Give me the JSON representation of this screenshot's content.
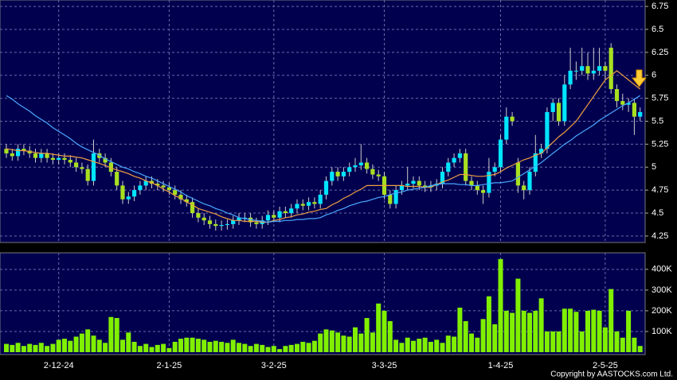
{
  "chart_data": [
    {
      "type": "candlestick",
      "categories": [
        null,
        null,
        null,
        null,
        null,
        null,
        null,
        null,
        null,
        "2-12-24",
        null,
        null,
        null,
        null,
        null,
        null,
        null,
        null,
        null,
        null,
        null,
        null,
        null,
        null,
        null,
        null,
        null,
        null,
        "2-1-25",
        null,
        null,
        null,
        null,
        null,
        null,
        null,
        null,
        null,
        null,
        null,
        null,
        null,
        null,
        null,
        null,
        null,
        "3-2-25",
        null,
        null,
        null,
        null,
        null,
        null,
        null,
        null,
        null,
        null,
        null,
        null,
        null,
        null,
        null,
        null,
        null,
        null,
        "3-3-25",
        null,
        null,
        null,
        null,
        null,
        null,
        null,
        null,
        null,
        null,
        null,
        null,
        null,
        null,
        null,
        null,
        null,
        null,
        null,
        "1-4-25",
        null,
        null,
        null,
        null,
        null,
        null,
        null,
        null,
        null,
        null,
        null,
        null,
        null,
        null,
        null,
        null,
        null,
        "2-5-25",
        null,
        null,
        null,
        null,
        null,
        null
      ],
      "open": [
        5.2,
        5.15,
        5.12,
        5.2,
        5.18,
        5.15,
        5.1,
        5.15,
        5.1,
        5.08,
        5.1,
        5.08,
        5.05,
        5.0,
        4.98,
        4.85,
        5.15,
        5.1,
        5.05,
        4.95,
        4.8,
        4.65,
        4.68,
        4.75,
        4.8,
        4.85,
        4.82,
        4.8,
        4.78,
        4.75,
        4.7,
        4.65,
        4.62,
        4.5,
        4.45,
        4.42,
        4.38,
        4.36,
        4.37,
        4.38,
        4.42,
        4.45,
        4.45,
        4.4,
        4.38,
        4.42,
        4.48,
        4.45,
        4.52,
        4.5,
        4.55,
        4.6,
        4.58,
        4.62,
        4.6,
        4.7,
        4.85,
        4.95,
        4.9,
        4.95,
        5.0,
        5.02,
        5.05,
        4.98,
        4.92,
        4.9,
        4.7,
        4.6,
        4.75,
        4.8,
        4.82,
        4.85,
        4.8,
        4.78,
        4.8,
        4.82,
        4.95,
        5.05,
        5.1,
        5.15,
        4.85,
        4.8,
        4.75,
        4.72,
        4.95,
        5.0,
        5.3,
        5.55,
        5.05,
        4.8,
        4.75,
        4.95,
        5.15,
        5.2,
        5.6,
        5.7,
        5.5,
        5.9,
        6.05,
        6.05,
        6.1,
        6.02,
        6.05,
        6.1,
        6.3,
        5.85,
        5.72,
        5.68,
        5.7,
        5.55
      ],
      "high": [
        5.25,
        5.2,
        5.25,
        5.25,
        5.23,
        5.2,
        5.2,
        5.2,
        5.15,
        5.15,
        5.15,
        5.13,
        5.1,
        5.05,
        5.03,
        5.3,
        5.2,
        5.15,
        5.1,
        5.0,
        4.85,
        4.73,
        4.8,
        4.85,
        4.9,
        4.9,
        4.87,
        4.85,
        4.83,
        4.8,
        4.75,
        4.7,
        4.67,
        4.55,
        4.5,
        4.47,
        4.43,
        4.42,
        4.43,
        4.47,
        4.5,
        4.5,
        4.5,
        4.45,
        4.47,
        4.53,
        4.53,
        4.57,
        4.57,
        4.6,
        4.65,
        4.65,
        4.67,
        4.67,
        4.75,
        4.9,
        5.0,
        5.0,
        5.0,
        5.05,
        5.1,
        5.25,
        5.1,
        5.03,
        4.97,
        4.95,
        4.75,
        4.8,
        4.85,
        5.0,
        4.9,
        4.9,
        4.85,
        4.85,
        4.87,
        5.0,
        5.1,
        5.15,
        5.2,
        5.2,
        4.9,
        4.85,
        4.8,
        5.1,
        5.05,
        5.35,
        5.65,
        5.6,
        5.1,
        4.85,
        5.0,
        5.35,
        5.25,
        5.65,
        5.75,
        5.75,
        6.0,
        6.3,
        6.15,
        6.3,
        6.25,
        6.3,
        6.3,
        6.15,
        6.35,
        5.9,
        5.8,
        5.75,
        5.75,
        5.65
      ],
      "low": [
        5.1,
        5.07,
        5.07,
        5.13,
        5.1,
        5.05,
        5.05,
        5.05,
        5.03,
        5.03,
        5.03,
        5.0,
        4.95,
        4.93,
        4.8,
        4.8,
        5.05,
        5.0,
        4.9,
        4.75,
        4.6,
        4.6,
        4.63,
        4.7,
        4.75,
        4.77,
        4.75,
        4.73,
        4.7,
        4.65,
        4.6,
        4.57,
        4.45,
        4.4,
        4.37,
        4.33,
        4.31,
        4.31,
        4.32,
        4.33,
        4.37,
        4.4,
        4.35,
        4.33,
        4.33,
        4.37,
        4.4,
        4.4,
        4.45,
        4.45,
        4.5,
        4.53,
        4.53,
        4.55,
        4.55,
        4.65,
        4.8,
        4.85,
        4.85,
        4.9,
        4.95,
        4.97,
        4.93,
        4.87,
        4.85,
        4.65,
        4.55,
        4.55,
        4.7,
        4.75,
        4.77,
        4.75,
        4.73,
        4.73,
        4.75,
        4.77,
        4.9,
        5.0,
        5.05,
        4.8,
        4.75,
        4.7,
        4.6,
        4.67,
        4.9,
        4.95,
        5.25,
        5.45,
        4.72,
        4.65,
        4.7,
        4.9,
        5.1,
        5.15,
        5.5,
        5.45,
        5.45,
        5.85,
        5.95,
        6.0,
        5.95,
        5.95,
        6.0,
        5.95,
        5.8,
        5.65,
        5.62,
        5.6,
        5.35,
        5.5
      ],
      "close": [
        5.15,
        5.12,
        5.2,
        5.18,
        5.15,
        5.1,
        5.15,
        5.1,
        5.08,
        5.1,
        5.08,
        5.05,
        5.0,
        4.98,
        4.85,
        5.15,
        5.1,
        5.05,
        4.95,
        4.8,
        4.65,
        4.68,
        4.75,
        4.8,
        4.85,
        4.82,
        4.8,
        4.78,
        4.75,
        4.7,
        4.65,
        4.62,
        4.5,
        4.45,
        4.42,
        4.38,
        4.36,
        4.37,
        4.38,
        4.42,
        4.45,
        4.45,
        4.4,
        4.38,
        4.42,
        4.48,
        4.45,
        4.52,
        4.5,
        4.55,
        4.6,
        4.58,
        4.62,
        4.6,
        4.7,
        4.85,
        4.95,
        4.9,
        4.95,
        5.0,
        5.02,
        5.05,
        4.98,
        4.92,
        4.9,
        4.7,
        4.6,
        4.75,
        4.8,
        4.82,
        4.85,
        4.8,
        4.78,
        4.8,
        4.82,
        4.95,
        5.05,
        5.1,
        5.15,
        4.85,
        4.8,
        4.75,
        4.72,
        4.95,
        5.0,
        5.3,
        5.55,
        5.5,
        4.8,
        4.75,
        4.95,
        5.15,
        5.2,
        5.6,
        5.7,
        5.5,
        5.9,
        6.05,
        6.05,
        6.1,
        6.02,
        6.05,
        6.1,
        6.05,
        5.85,
        5.72,
        5.68,
        5.7,
        5.55,
        5.6
      ],
      "up_color": "#00e5ff",
      "down_color": "#a8e020",
      "series": [
        {
          "color": "#f0a040",
          "values": [
            5.2,
            5.19,
            5.18,
            5.18,
            5.17,
            5.16,
            5.15,
            5.15,
            5.14,
            5.13,
            5.12,
            5.12,
            5.11,
            5.1,
            5.08,
            5.06,
            5.04,
            5.02,
            4.99,
            4.97,
            4.95,
            4.93,
            4.9,
            4.88,
            4.85,
            4.83,
            4.8,
            4.76,
            4.73,
            4.69,
            4.66,
            4.62,
            4.59,
            4.55,
            4.53,
            4.51,
            4.49,
            4.46,
            4.44,
            4.42,
            4.42,
            4.41,
            4.41,
            4.41,
            4.4,
            4.4,
            4.42,
            4.43,
            4.45,
            4.46,
            4.48,
            4.49,
            4.51,
            4.52,
            4.54,
            4.55,
            4.59,
            4.62,
            4.66,
            4.69,
            4.73,
            4.76,
            4.8,
            4.8,
            4.8,
            4.8,
            4.8,
            4.8,
            4.8,
            4.79,
            4.79,
            4.79,
            4.78,
            4.78,
            4.81,
            4.84,
            4.86,
            4.89,
            4.92,
            4.92,
            4.91,
            4.9,
            4.9,
            4.91,
            4.92,
            4.95,
            4.99,
            5.02,
            5.05,
            5.08,
            5.1,
            5.13,
            5.15,
            5.21,
            5.27,
            5.33,
            5.38,
            5.44,
            5.5,
            5.59,
            5.68,
            5.77,
            5.86,
            5.95,
            6.0,
            6.05,
            6.0,
            5.95,
            5.9,
            5.85
          ]
        },
        {
          "color": "#4aa8ff",
          "values": [
            5.78,
            5.74,
            5.69,
            5.65,
            5.61,
            5.56,
            5.52,
            5.48,
            5.43,
            5.39,
            5.35,
            5.31,
            5.26,
            5.22,
            5.19,
            5.16,
            5.13,
            5.09,
            5.06,
            5.03,
            5.0,
            4.98,
            4.95,
            4.93,
            4.9,
            4.88,
            4.85,
            4.82,
            4.79,
            4.76,
            4.73,
            4.69,
            4.66,
            4.63,
            4.6,
            4.58,
            4.55,
            4.53,
            4.5,
            4.48,
            4.45,
            4.44,
            4.43,
            4.42,
            4.41,
            4.4,
            4.41,
            4.41,
            4.42,
            4.42,
            4.43,
            4.43,
            4.44,
            4.44,
            4.45,
            4.48,
            4.5,
            4.53,
            4.55,
            4.58,
            4.6,
            4.62,
            4.63,
            4.65,
            4.67,
            4.68,
            4.7,
            4.72,
            4.73,
            4.75,
            4.76,
            4.77,
            4.78,
            4.8,
            4.81,
            4.82,
            4.82,
            4.82,
            4.81,
            4.81,
            4.8,
            4.8,
            4.81,
            4.82,
            4.83,
            4.83,
            4.84,
            4.85,
            4.89,
            4.93,
            4.97,
            5.01,
            5.05,
            5.1,
            5.15,
            5.2,
            5.25,
            5.29,
            5.34,
            5.38,
            5.42,
            5.46,
            5.51,
            5.55,
            5.59,
            5.63,
            5.67,
            5.7,
            5.74,
            5.78
          ]
        }
      ],
      "ylim": [
        4.18,
        6.82
      ],
      "yticks": [
        4.25,
        4.5,
        4.75,
        5,
        5.25,
        5.5,
        5.75,
        6,
        6.25,
        6.5,
        6.75
      ],
      "grid": true
    },
    {
      "type": "bar",
      "values": [
        40000,
        35000,
        45000,
        30000,
        40000,
        35000,
        45000,
        30000,
        40000,
        60000,
        65000,
        55000,
        75000,
        90000,
        110000,
        80000,
        60000,
        45000,
        170000,
        165000,
        60000,
        95000,
        50000,
        30000,
        40000,
        25000,
        35000,
        40000,
        20000,
        50000,
        65000,
        70000,
        70000,
        65000,
        60000,
        50000,
        55000,
        50000,
        45000,
        60000,
        45000,
        40000,
        30000,
        40000,
        35000,
        25000,
        30000,
        15000,
        30000,
        35000,
        40000,
        50000,
        45000,
        55000,
        90000,
        110000,
        105000,
        95000,
        80000,
        75000,
        120000,
        90000,
        165000,
        95000,
        235000,
        200000,
        150000,
        60000,
        45000,
        70000,
        55000,
        65000,
        70000,
        50000,
        60000,
        45000,
        80000,
        75000,
        215000,
        150000,
        90000,
        70000,
        160000,
        270000,
        135000,
        450000,
        200000,
        190000,
        355000,
        200000,
        190000,
        200000,
        260000,
        100000,
        100000,
        100000,
        210000,
        210000,
        195000,
        100000,
        200000,
        205000,
        200000,
        120000,
        305000,
        100000,
        70000,
        200000,
        70000,
        30000
      ],
      "color": "#80f000",
      "ylim": [
        0,
        480000
      ],
      "yticks": [
        {
          "value": 100000,
          "label": "100K"
        },
        {
          "value": 200000,
          "label": "200K"
        },
        {
          "value": 300000,
          "label": "300K"
        },
        {
          "value": 400000,
          "label": "400K"
        }
      ],
      "grid": true,
      "source": "Copyright by AASTOCKS.com Ltd."
    }
  ]
}
